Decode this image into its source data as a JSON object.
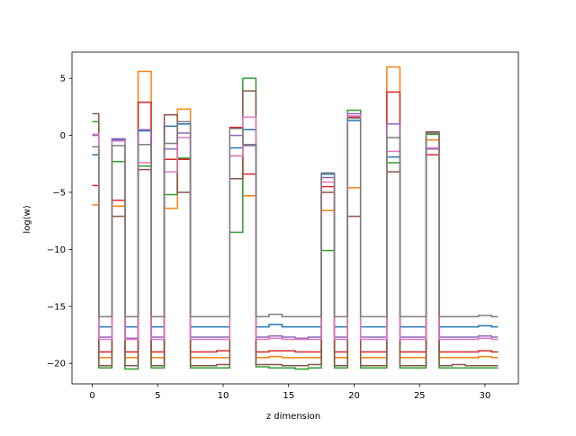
{
  "chart_data": {
    "type": "line",
    "drawstyle": "steps-mid",
    "title": "",
    "xlabel": "z dimension",
    "ylabel": "log(w)",
    "xlim": [
      -1.55,
      32.55
    ],
    "ylim": [
      -21.8,
      7.3
    ],
    "xticks": [
      0,
      5,
      10,
      15,
      20,
      25,
      30
    ],
    "yticks": [
      -20,
      -15,
      -10,
      -5,
      0,
      5
    ],
    "grid": false,
    "legend": "none",
    "x": [
      0,
      1,
      2,
      3,
      4,
      5,
      6,
      7,
      8,
      9,
      10,
      11,
      12,
      13,
      14,
      15,
      16,
      17,
      18,
      19,
      20,
      21,
      22,
      23,
      24,
      25,
      26,
      27,
      28,
      29,
      30,
      31
    ],
    "series": [
      {
        "color": "#1f77b4",
        "values": [
          -1.7,
          -16.8,
          -0.4,
          -16.8,
          0.4,
          -16.8,
          0.8,
          1.0,
          -16.8,
          -16.8,
          -16.8,
          -1.1,
          0.5,
          -16.8,
          -16.6,
          -16.8,
          -16.8,
          -16.8,
          -3.4,
          -16.8,
          1.3,
          -16.8,
          -16.8,
          -1.9,
          -16.8,
          -16.8,
          0.2,
          -16.8,
          -16.8,
          -16.8,
          -16.7,
          -16.8
        ]
      },
      {
        "color": "#ff7f0e",
        "values": [
          -6.1,
          -19.5,
          -6.2,
          -19.5,
          5.6,
          -19.5,
          -6.4,
          2.3,
          -19.5,
          -19.5,
          -19.5,
          -1.8,
          -5.3,
          -19.5,
          -19.4,
          -19.5,
          -19.5,
          -19.5,
          -6.6,
          -19.5,
          -4.6,
          -19.5,
          -19.5,
          6.0,
          -19.5,
          -19.5,
          -0.4,
          -19.5,
          -19.5,
          -19.5,
          -19.4,
          -19.5
        ]
      },
      {
        "color": "#2ca02c",
        "values": [
          1.2,
          -20.4,
          -2.3,
          -20.5,
          -2.7,
          -20.4,
          -5.2,
          -2.0,
          -20.4,
          -20.4,
          -20.4,
          -8.5,
          5.0,
          -20.3,
          -20.4,
          -20.4,
          -20.5,
          -20.4,
          -10.1,
          -20.4,
          2.2,
          -20.4,
          -20.4,
          -2.4,
          -20.4,
          -20.4,
          0.1,
          -20.4,
          -20.4,
          -20.4,
          -20.4,
          -20.4
        ]
      },
      {
        "color": "#d62728",
        "values": [
          -4.4,
          -19.0,
          -5.7,
          -19.0,
          2.9,
          -19.0,
          -2.1,
          -2.1,
          -19.0,
          -19.0,
          -18.9,
          0.7,
          -3.4,
          -19.0,
          -18.9,
          -18.9,
          -19.0,
          -19.0,
          -4.5,
          -19.0,
          1.6,
          -19.0,
          -19.0,
          3.8,
          -19.0,
          -19.0,
          -1.7,
          -19.0,
          -19.0,
          -19.0,
          -18.9,
          -19.0
        ]
      },
      {
        "color": "#9467bd",
        "values": [
          0.0,
          -17.7,
          -0.3,
          -17.8,
          0.5,
          -17.7,
          -1.2,
          0.2,
          -17.7,
          -17.7,
          -17.7,
          0.0,
          -0.9,
          -17.7,
          -17.6,
          -17.7,
          -17.8,
          -17.7,
          -3.7,
          -17.7,
          1.9,
          -17.7,
          -17.7,
          1.0,
          -17.7,
          -17.7,
          -1.2,
          -17.7,
          -17.7,
          -17.7,
          -17.6,
          -17.7
        ]
      },
      {
        "color": "#8c564b",
        "values": [
          1.9,
          -20.2,
          -7.1,
          -20.2,
          -3.0,
          -20.2,
          1.8,
          -5.0,
          -20.2,
          -20.2,
          -20.1,
          -3.8,
          3.9,
          -20.1,
          -20.1,
          -20.2,
          -20.2,
          -20.1,
          -5.0,
          -20.2,
          -7.1,
          -20.2,
          -20.2,
          -3.2,
          -20.2,
          -20.2,
          0.3,
          -20.2,
          -20.1,
          -20.2,
          -20.2,
          -20.2
        ]
      },
      {
        "color": "#e377c2",
        "values": [
          0.1,
          -17.9,
          -0.5,
          -17.9,
          -2.4,
          -17.9,
          -3.2,
          -0.2,
          -17.9,
          -17.9,
          -17.9,
          -1.8,
          1.6,
          -17.9,
          -17.8,
          -17.9,
          -17.9,
          -17.9,
          -4.1,
          -17.9,
          1.7,
          -17.9,
          -17.9,
          -1.4,
          -17.9,
          -17.9,
          -1.1,
          -17.9,
          -17.9,
          -17.9,
          -17.8,
          -17.9
        ]
      },
      {
        "color": "#7f7f7f",
        "values": [
          -1.0,
          -15.9,
          -0.9,
          -15.9,
          -0.8,
          -15.9,
          -0.7,
          1.2,
          -15.9,
          -15.9,
          -15.9,
          0.6,
          -0.8,
          -15.9,
          -15.7,
          -15.9,
          -15.9,
          -15.9,
          -3.3,
          -15.9,
          1.5,
          -15.9,
          -15.9,
          -0.2,
          -15.9,
          -15.9,
          0.2,
          -15.9,
          -15.9,
          -15.9,
          -15.8,
          -15.9
        ]
      }
    ]
  }
}
